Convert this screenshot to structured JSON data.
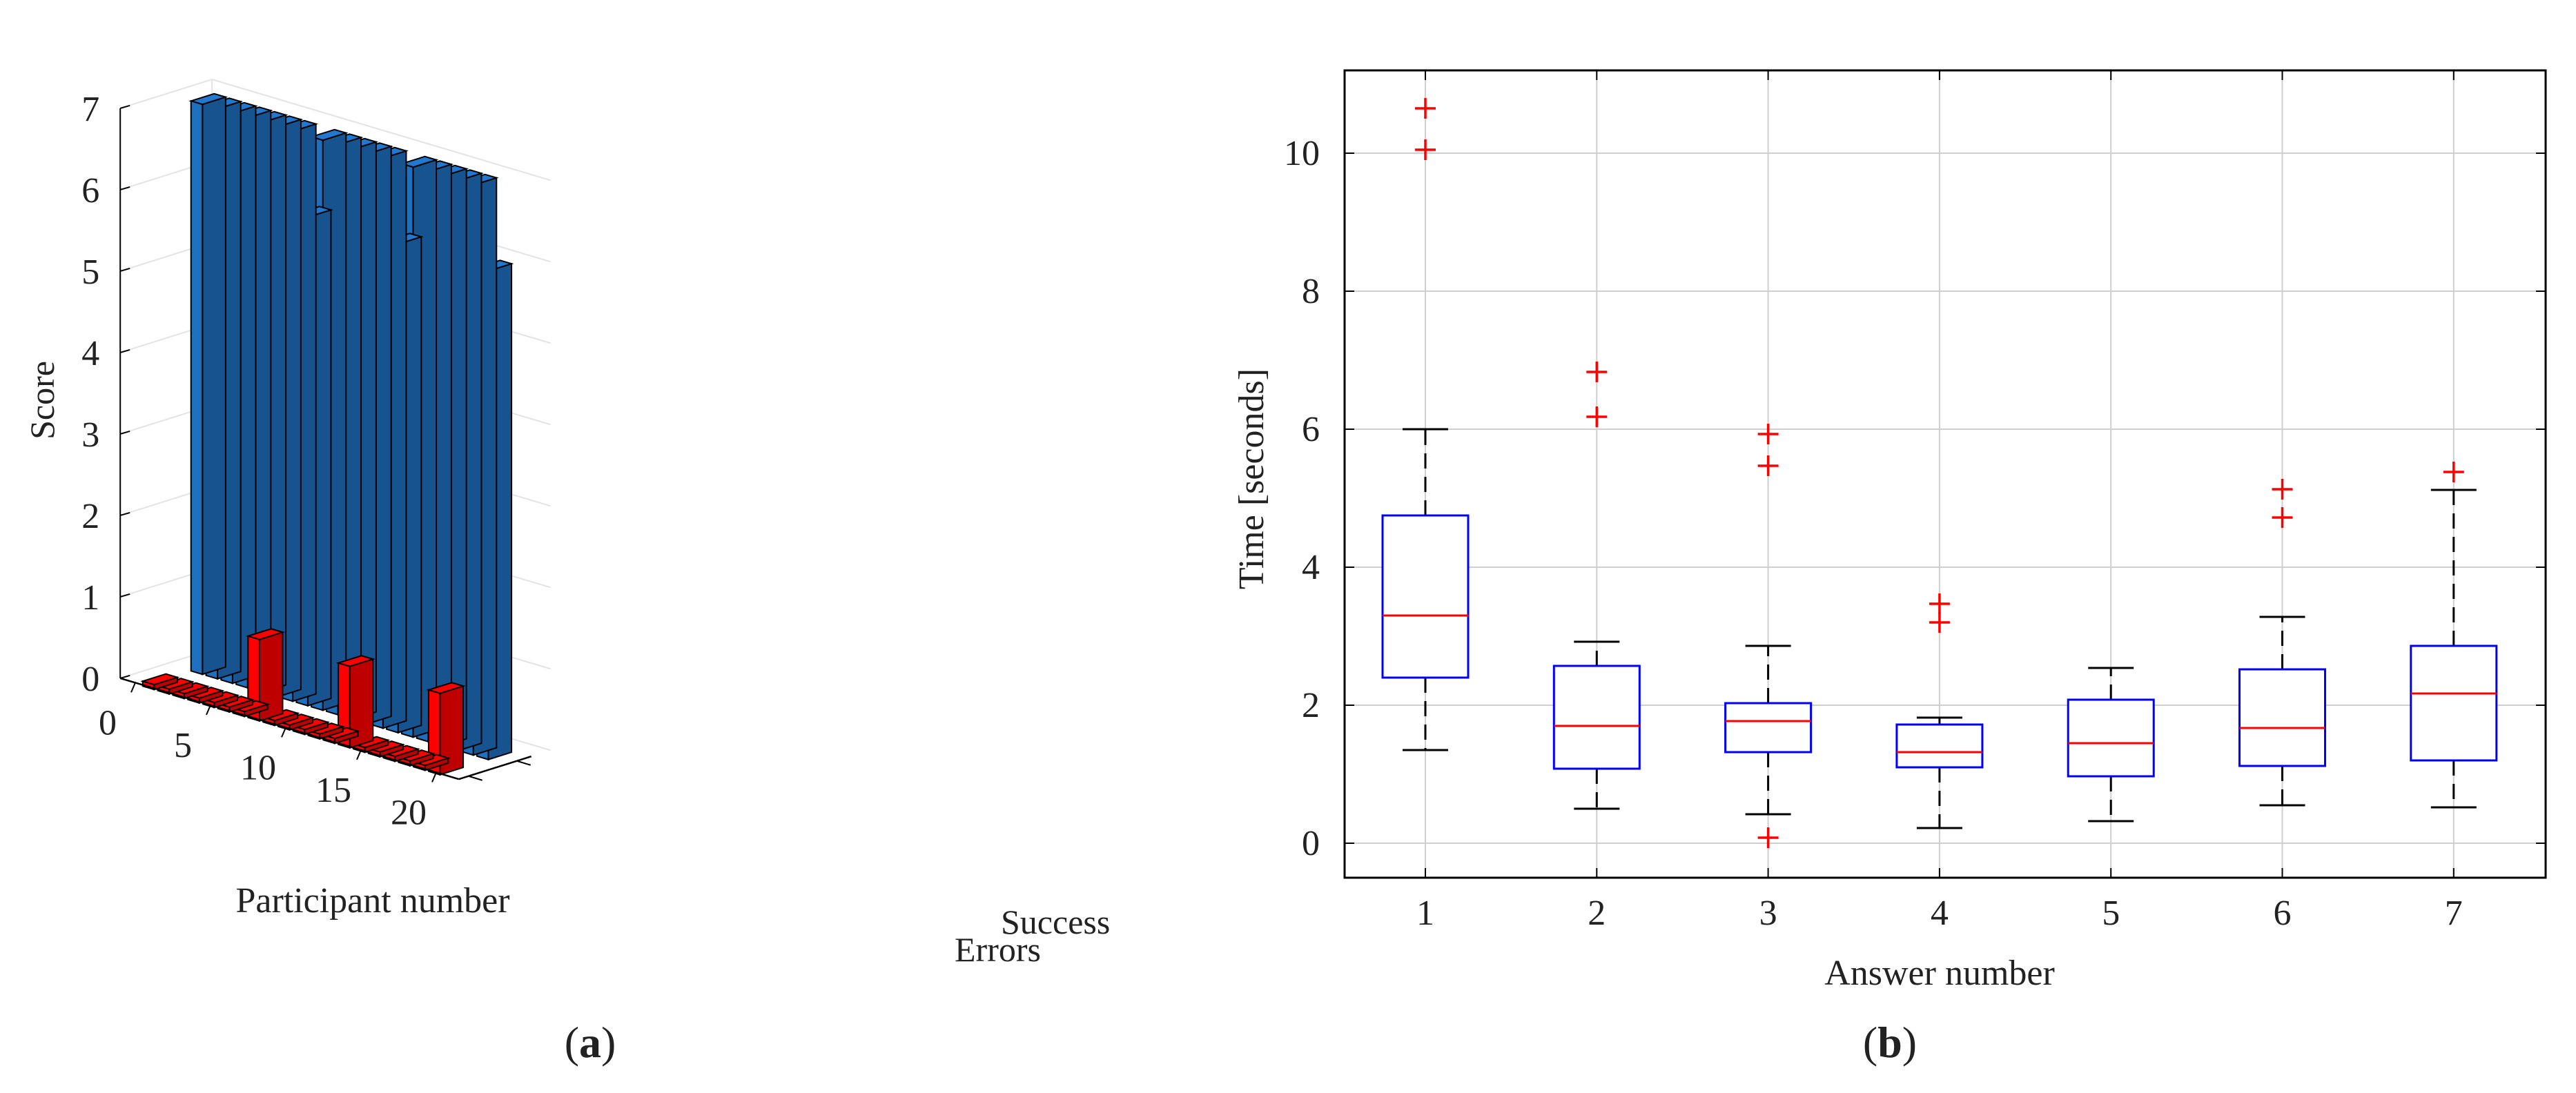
{
  "chart_data": [
    {
      "type": "bar",
      "subtype": "3d-bar",
      "panel_label": "a",
      "xlabel": "Participant number",
      "ylabel": "Score",
      "depth_labels": [
        "Success",
        "Errors"
      ],
      "participant_ticks": [
        "0",
        "5",
        "10",
        "15",
        "20"
      ],
      "y_ticks": [
        "0",
        "1",
        "2",
        "3",
        "4",
        "5",
        "6",
        "7"
      ],
      "ylim": [
        0,
        7
      ],
      "categories": [
        1,
        2,
        3,
        4,
        5,
        6,
        7,
        8,
        9,
        10,
        11,
        12,
        13,
        14,
        15,
        16,
        17,
        18,
        19,
        20
      ],
      "series": [
        {
          "name": "Success",
          "color": "#1f6fbf",
          "values": [
            7,
            7,
            7,
            7,
            7,
            7,
            7,
            6,
            7,
            7,
            7,
            7,
            7,
            6,
            7,
            7,
            7,
            7,
            7,
            6
          ]
        },
        {
          "name": "Errors",
          "color": "#ff0000",
          "values": [
            0,
            0,
            0,
            0,
            0,
            0,
            0,
            1,
            0,
            0,
            0,
            0,
            0,
            1,
            0,
            0,
            0,
            0,
            0,
            1
          ]
        }
      ]
    },
    {
      "type": "box",
      "panel_label": "b",
      "xlabel": "Answer number",
      "ylabel": "Time [seconds]",
      "ylim": [
        -0.5,
        11.2
      ],
      "y_ticks": [
        "0",
        "2",
        "4",
        "6",
        "8",
        "10"
      ],
      "categories": [
        "1",
        "2",
        "3",
        "4",
        "5",
        "6",
        "7"
      ],
      "grid": true,
      "box_color": "#0000ff",
      "median_color": "#ff0000",
      "outlier_color": "#ff0000",
      "boxes": [
        {
          "whisker_low": 1.35,
          "q1": 2.4,
          "median": 3.3,
          "q3": 4.75,
          "whisker_high": 6.0,
          "outliers": [
            10.05,
            10.65
          ]
        },
        {
          "whisker_low": 0.5,
          "q1": 1.08,
          "median": 1.7,
          "q3": 2.57,
          "whisker_high": 2.92,
          "outliers": [
            6.18,
            6.83
          ]
        },
        {
          "whisker_low": 0.42,
          "q1": 1.32,
          "median": 1.77,
          "q3": 2.03,
          "whisker_high": 2.86,
          "outliers": [
            0.08,
            5.47,
            5.93
          ]
        },
        {
          "whisker_low": 0.22,
          "q1": 1.1,
          "median": 1.32,
          "q3": 1.72,
          "whisker_high": 1.82,
          "outliers": [
            3.2,
            3.47
          ]
        },
        {
          "whisker_low": 0.32,
          "q1": 0.97,
          "median": 1.45,
          "q3": 2.08,
          "whisker_high": 2.54,
          "outliers": []
        },
        {
          "whisker_low": 0.55,
          "q1": 1.12,
          "median": 1.67,
          "q3": 2.52,
          "whisker_high": 3.28,
          "outliers": [
            4.72,
            5.13
          ]
        },
        {
          "whisker_low": 0.52,
          "q1": 1.2,
          "median": 2.17,
          "q3": 2.86,
          "whisker_high": 5.12,
          "outliers": [
            5.38
          ]
        }
      ]
    }
  ]
}
